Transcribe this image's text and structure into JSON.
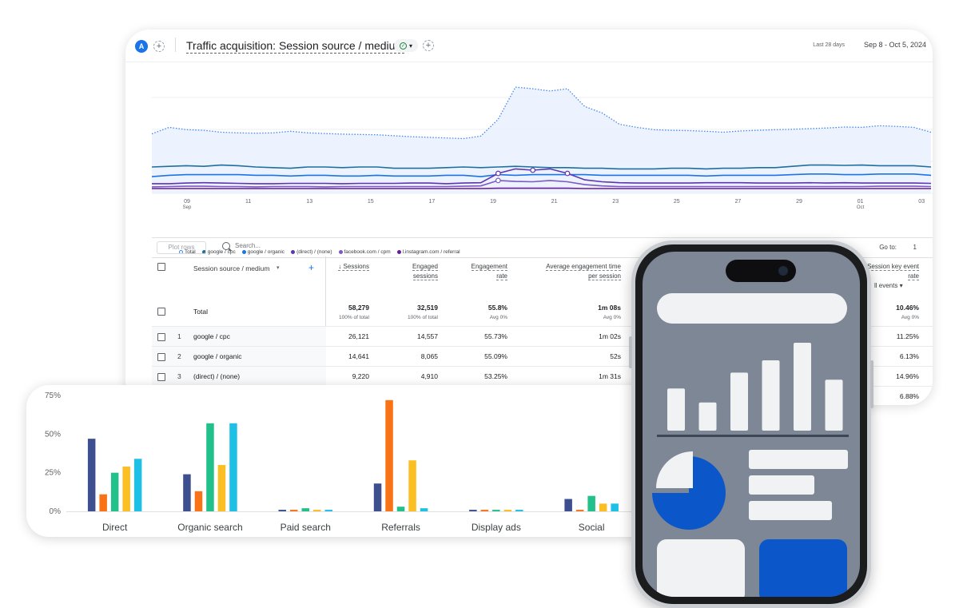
{
  "report": {
    "avatar_letter": "A",
    "title": "Traffic acquisition: Session source / medium",
    "date_label": "Last 28 days",
    "date_range": "Sep 8 - Oct 5, 2024",
    "plus": "+",
    "check": "✓",
    "caret": "▾"
  },
  "line_chart": {
    "type": "line",
    "x_ticks": [
      "09",
      "11",
      "13",
      "15",
      "17",
      "19",
      "21",
      "23",
      "25",
      "27",
      "29",
      "01",
      "03"
    ],
    "x_subticks": {
      "09": "Sep",
      "01": "Oct"
    },
    "series": [
      {
        "name": "Total",
        "color": "#4285f4",
        "style": "dotted-filled",
        "values": [
          1850,
          2050,
          1980,
          1960,
          1900,
          1880,
          1870,
          1880,
          1930,
          1880,
          1860,
          1840,
          1830,
          1820,
          1790,
          1760,
          1740,
          1720,
          1700,
          1780,
          2300,
          3300,
          3250,
          3180,
          3250,
          2700,
          2500,
          2150,
          2050,
          1980,
          1960,
          1950,
          1930,
          1900,
          1940,
          1960,
          1980,
          1990,
          2010,
          2030,
          2060,
          2050,
          2100,
          2080,
          2050,
          1900
        ]
      },
      {
        "name": "google / cpc",
        "color": "#1e6f9e",
        "values": [
          820,
          840,
          860,
          840,
          880,
          860,
          820,
          800,
          780,
          820,
          820,
          800,
          820,
          820,
          780,
          780,
          780,
          800,
          820,
          800,
          820,
          840,
          820,
          800,
          800,
          780,
          780,
          760,
          760,
          760,
          780,
          780,
          760,
          780,
          780,
          800,
          800,
          840,
          880,
          880,
          870,
          880,
          860,
          860,
          860,
          820
        ]
      },
      {
        "name": "google / organic",
        "color": "#1a73e8",
        "values": [
          520,
          560,
          580,
          580,
          580,
          580,
          560,
          560,
          540,
          560,
          560,
          540,
          540,
          560,
          540,
          540,
          540,
          560,
          560,
          520,
          580,
          560,
          580,
          580,
          580,
          580,
          560,
          560,
          560,
          560,
          560,
          560,
          540,
          560,
          560,
          560,
          560,
          580,
          600,
          600,
          580,
          580,
          600,
          600,
          600,
          560
        ]
      },
      {
        "name": "(direct) / (none)",
        "color": "#5e35b1",
        "values": [
          300,
          300,
          320,
          330,
          320,
          310,
          300,
          300,
          310,
          310,
          310,
          300,
          310,
          310,
          310,
          320,
          320,
          300,
          320,
          330,
          620,
          760,
          720,
          760,
          620,
          420,
          360,
          330,
          320,
          320,
          320,
          320,
          330,
          330,
          330,
          320,
          320,
          320,
          330,
          320,
          330,
          320,
          320,
          320,
          320,
          310
        ]
      },
      {
        "name": "facebook.com / cpm",
        "color": "#7e57c2",
        "values": [
          200,
          210,
          220,
          220,
          210,
          210,
          200,
          210,
          210,
          210,
          200,
          210,
          210,
          210,
          210,
          210,
          210,
          210,
          220,
          230,
          400,
          370,
          360,
          400,
          360,
          270,
          230,
          210,
          210,
          210,
          210,
          210,
          210,
          210,
          210,
          210,
          210,
          210,
          210,
          210,
          210,
          210,
          220,
          220,
          220,
          210
        ]
      },
      {
        "name": "l.instagram.com / referral",
        "color": "#6a1b9a",
        "values": [
          150,
          150,
          150,
          150,
          150,
          150,
          150,
          150,
          150,
          150,
          150,
          150,
          150,
          150,
          150,
          150,
          150,
          150,
          150,
          150,
          160,
          160,
          160,
          160,
          160,
          150,
          150,
          150,
          150,
          150,
          150,
          150,
          150,
          150,
          150,
          150,
          150,
          150,
          150,
          150,
          150,
          150,
          150,
          150,
          150,
          150
        ]
      }
    ],
    "ylim": [
      0,
      3600
    ]
  },
  "table": {
    "plot_rows": "Plot rows",
    "search_placeholder": "Search...",
    "goto_label": "Go to:",
    "goto_value": "1",
    "dim_header": "Session source / medium",
    "add_col": "+",
    "columns": [
      {
        "label1": "↓ Sessions",
        "label2": ""
      },
      {
        "label1": "Engaged",
        "label2": "sessions"
      },
      {
        "label1": "Engagement",
        "label2": "rate"
      },
      {
        "label1": "Average engagement time",
        "label2": "per session"
      },
      {
        "label1": "Session key event",
        "label2": "rate"
      }
    ],
    "key_event_filter": "ll events ▾",
    "total": {
      "label": "Total",
      "values": [
        "58,279",
        "32,519",
        "55.8%",
        "1m 08s",
        "10.46%"
      ],
      "subs": [
        "100% of total",
        "100% of total",
        "Avg 0%",
        "Avg 0%",
        "Avg 0%"
      ]
    },
    "rows": [
      {
        "idx": "1",
        "name": "google / cpc",
        "values": [
          "26,121",
          "14,557",
          "55.73%",
          "1m 02s",
          "11.25%"
        ]
      },
      {
        "idx": "2",
        "name": "google / organic",
        "values": [
          "14,641",
          "8,065",
          "55.09%",
          "52s",
          "6.13%"
        ]
      },
      {
        "idx": "3",
        "name": "(direct) / (none)",
        "values": [
          "9,220",
          "4,910",
          "53.25%",
          "1m 31s",
          "14.96%"
        ]
      },
      {
        "idx": "4",
        "name": "",
        "values": [
          "",
          "",
          "",
          "",
          "6.88%"
        ]
      }
    ]
  },
  "chart_data": {
    "type": "bar",
    "categories": [
      "Direct",
      "Organic search",
      "Paid search",
      "Referrals",
      "Display ads",
      "Social"
    ],
    "y_tick_labels": [
      "75%",
      "50%",
      "25%",
      "0%"
    ],
    "ylim": [
      0,
      75
    ],
    "series": [
      {
        "color": "#3d4f8f",
        "values": [
          47,
          24,
          1,
          18,
          1,
          8
        ]
      },
      {
        "color": "#f97316",
        "values": [
          11,
          13,
          1,
          72,
          1,
          1
        ]
      },
      {
        "color": "#22c08a",
        "values": [
          25,
          57,
          2,
          3,
          1,
          10
        ]
      },
      {
        "color": "#fbbf24",
        "values": [
          29,
          30,
          1,
          33,
          1,
          5
        ]
      },
      {
        "color": "#1ec0e6",
        "values": [
          34,
          57,
          1,
          2,
          1,
          5
        ]
      }
    ]
  },
  "phone": {
    "screen_color": "#7d8796",
    "accent": "#0b57c9",
    "bar_levels": [
      0.48,
      0.32,
      0.66,
      0.8,
      1.0,
      0.58
    ],
    "pie_share": 0.75
  }
}
